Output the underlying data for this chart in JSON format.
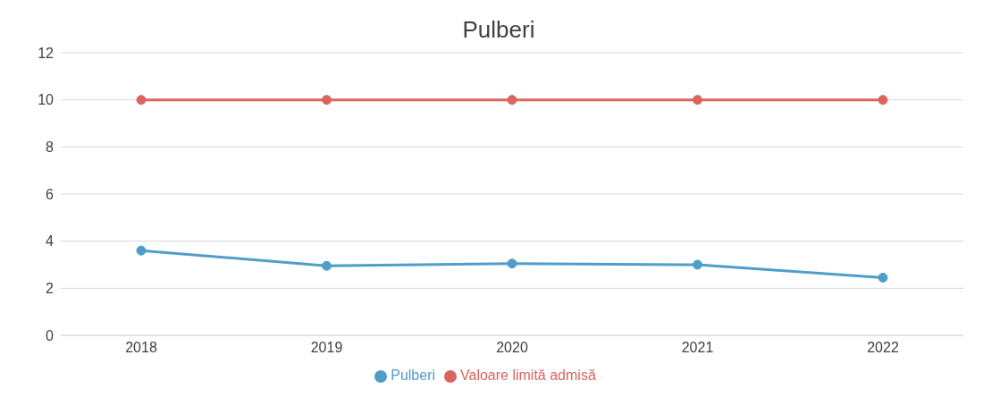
{
  "chart_data": {
    "type": "line",
    "title": "Pulberi",
    "categories": [
      "2018",
      "2019",
      "2020",
      "2021",
      "2022"
    ],
    "series": [
      {
        "name": "Pulberi",
        "color": "#4f9ec9",
        "values": [
          3.6,
          2.95,
          3.05,
          3.0,
          2.45
        ]
      },
      {
        "name": "Valoare limită admisă",
        "color": "#d9655e",
        "values": [
          10,
          10,
          10,
          10,
          10
        ]
      }
    ],
    "ylim": [
      0,
      12
    ],
    "yticks": [
      0,
      2,
      4,
      6,
      8,
      10,
      12
    ],
    "grid": "y",
    "legend": "bottom",
    "marker": "circle",
    "line_style": "solid"
  }
}
